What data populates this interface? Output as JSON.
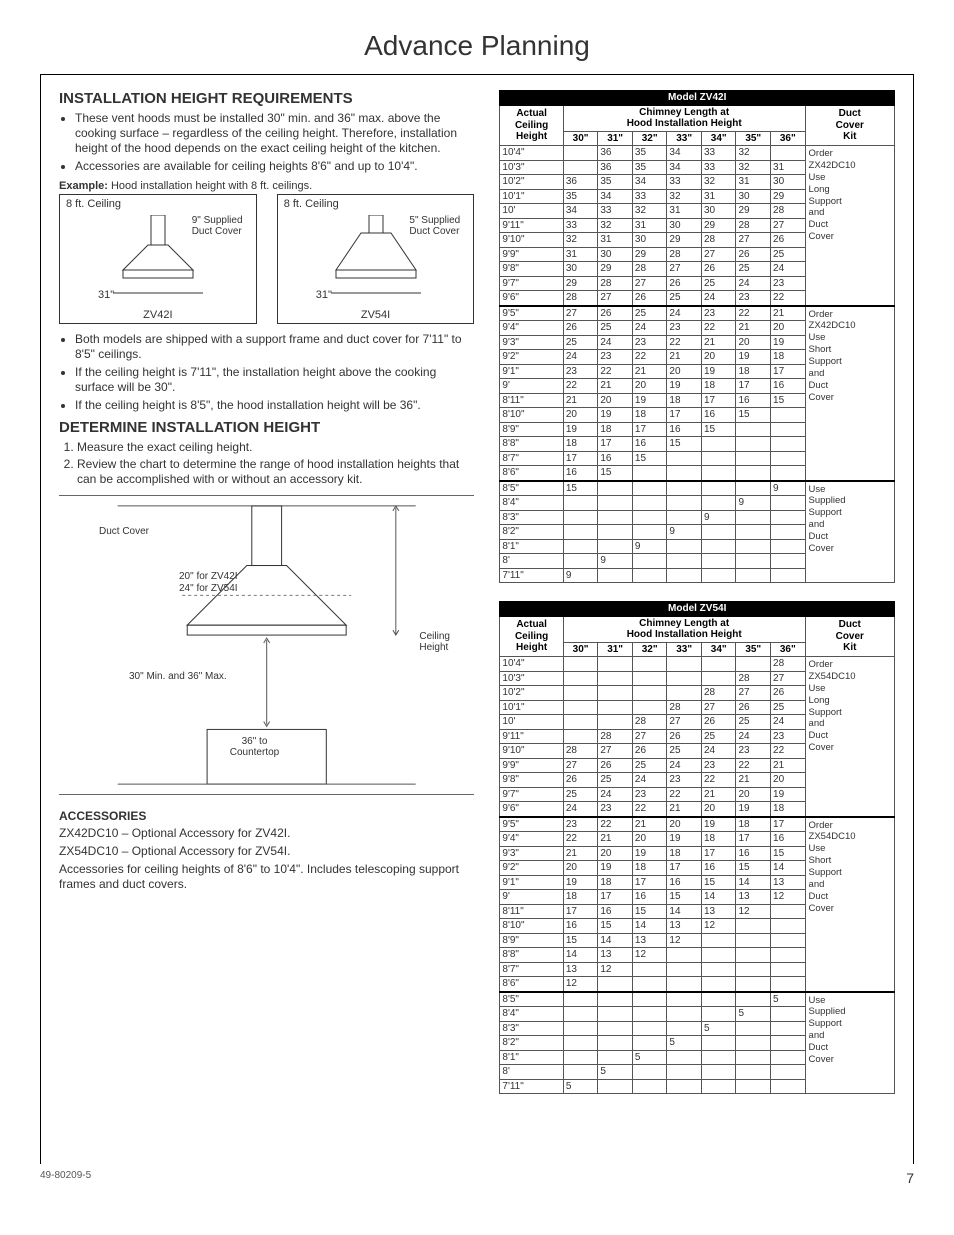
{
  "page_title": "Advance Planning",
  "footer_code": "49-80209-5",
  "page_number": "7",
  "left": {
    "h_install_req": "INSTALLATION HEIGHT REQUIREMENTS",
    "req_bullets_a": [
      "These vent hoods must be installed 30\" min. and 36\" max. above the cooking surface – regardless of the ceiling height. Therefore, installation height of the hood depends on the exact ceiling height of the kitchen.",
      "Accessories are available for ceiling heights 8'6\" and up to 10'4\"."
    ],
    "example_label_b": "Example:",
    "example_label_t": " Hood installation height with 8 ft. ceilings.",
    "ceiling_a": {
      "top": "8 ft. Ceiling",
      "duct": "9\" Supplied Duct Cover",
      "dim": "31\"",
      "model": "ZV42I"
    },
    "ceiling_b": {
      "top": "8 ft. Ceiling",
      "duct": "5\" Supplied Duct Cover",
      "dim": "31\"",
      "model": "ZV54I"
    },
    "req_bullets_b": [
      "Both models are shipped with a support frame and duct cover for 7'11\" to 8'5\" ceilings.",
      "If the ceiling height is 7'11\", the installation height above the cooking surface will be 30\".",
      "If the ceiling height is 8'5\", the hood installation height will be 36\"."
    ],
    "h_determine": "DETERMINE INSTALLATION HEIGHT",
    "steps": [
      "Measure the exact ceiling height.",
      "Review the chart to determine the range of hood installation heights that can be accomplished with or without an accessory kit."
    ],
    "diag": {
      "duct_cover": "Duct Cover",
      "spec_a": "20\" for ZV42I",
      "spec_b": "24\" for ZV54I",
      "minmax": "30\" Min. and 36\" Max.",
      "ceiling_h": "Ceiling Height",
      "countertop": "36\" to Countertop"
    },
    "h_acc": "ACCESSORIES",
    "acc_p1": "ZX42DC10 – Optional Accessory for ZV42I.",
    "acc_p2": "ZX54DC10 – Optional Accessory for ZV54I.",
    "acc_p3": "Accessories for ceiling heights of 8'6\" to 10'4\". Includes telescoping support frames and duct covers."
  },
  "tables": {
    "head_actual": "Actual Ceiling Height",
    "head_chimney": "Chimney Length at",
    "head_hood": "Hood Installation Height",
    "head_duct": "Duct Cover Kit",
    "col_widths": [
      "30\"",
      "31\"",
      "32\"",
      "33\"",
      "34\"",
      "35\"",
      "36\""
    ],
    "kit_texts": [
      "Order ZX42DC10 Use Long Support and Duct Cover",
      "Order ZX42DC10 Use Short Support and Duct Cover",
      "Use Supplied Support and Duct Cover"
    ],
    "kit_texts_54": [
      "Order ZX54DC10 Use Long Support and Duct Cover",
      "Order ZX54DC10 Use Short Support and Duct Cover",
      "Use Supplied Support and Duct Cover"
    ],
    "zv42i": {
      "title": "Model ZV42I",
      "groups": [
        {
          "kit_idx": 0,
          "rows": [
            [
              "10'4\"",
              "",
              "36",
              "35",
              "34",
              "33",
              "32",
              ""
            ],
            [
              "10'3\"",
              "",
              "36",
              "35",
              "34",
              "33",
              "32",
              "31"
            ],
            [
              "10'2\"",
              "36",
              "35",
              "34",
              "33",
              "32",
              "31",
              "30"
            ],
            [
              "10'1\"",
              "35",
              "34",
              "33",
              "32",
              "31",
              "30",
              "29"
            ],
            [
              "10'",
              "34",
              "33",
              "32",
              "31",
              "30",
              "29",
              "28"
            ],
            [
              "9'11\"",
              "33",
              "32",
              "31",
              "30",
              "29",
              "28",
              "27"
            ],
            [
              "9'10\"",
              "32",
              "31",
              "30",
              "29",
              "28",
              "27",
              "26"
            ],
            [
              "9'9\"",
              "31",
              "30",
              "29",
              "28",
              "27",
              "26",
              "25"
            ],
            [
              "9'8\"",
              "30",
              "29",
              "28",
              "27",
              "26",
              "25",
              "24"
            ],
            [
              "9'7\"",
              "29",
              "28",
              "27",
              "26",
              "25",
              "24",
              "23"
            ],
            [
              "9'6\"",
              "28",
              "27",
              "26",
              "25",
              "24",
              "23",
              "22"
            ]
          ]
        },
        {
          "kit_idx": 1,
          "rows": [
            [
              "9'5\"",
              "27",
              "26",
              "25",
              "24",
              "23",
              "22",
              "21"
            ],
            [
              "9'4\"",
              "26",
              "25",
              "24",
              "23",
              "22",
              "21",
              "20"
            ],
            [
              "9'3\"",
              "25",
              "24",
              "23",
              "22",
              "21",
              "20",
              "19"
            ],
            [
              "9'2\"",
              "24",
              "23",
              "22",
              "21",
              "20",
              "19",
              "18"
            ],
            [
              "9'1\"",
              "23",
              "22",
              "21",
              "20",
              "19",
              "18",
              "17"
            ],
            [
              "9'",
              "22",
              "21",
              "20",
              "19",
              "18",
              "17",
              "16"
            ],
            [
              "8'11\"",
              "21",
              "20",
              "19",
              "18",
              "17",
              "16",
              "15"
            ],
            [
              "8'10\"",
              "20",
              "19",
              "18",
              "17",
              "16",
              "15",
              ""
            ],
            [
              "8'9\"",
              "19",
              "18",
              "17",
              "16",
              "15",
              "",
              ""
            ],
            [
              "8'8\"",
              "18",
              "17",
              "16",
              "15",
              "",
              "",
              ""
            ],
            [
              "8'7\"",
              "17",
              "16",
              "15",
              "",
              "",
              "",
              ""
            ],
            [
              "8'6\"",
              "16",
              "15",
              "",
              "",
              "",
              "",
              ""
            ]
          ]
        },
        {
          "kit_idx": 2,
          "rows": [
            [
              "8'5\"",
              "15",
              "",
              "",
              "",
              "",
              "",
              "9"
            ],
            [
              "8'4\"",
              "",
              "",
              "",
              "",
              "",
              "9",
              ""
            ],
            [
              "8'3\"",
              "",
              "",
              "",
              "",
              "9",
              "",
              ""
            ],
            [
              "8'2\"",
              "",
              "",
              "",
              "9",
              "",
              "",
              ""
            ],
            [
              "8'1\"",
              "",
              "",
              "9",
              "",
              "",
              "",
              ""
            ],
            [
              "8'",
              "",
              "9",
              "",
              "",
              "",
              "",
              ""
            ],
            [
              "7'11\"",
              "9",
              "",
              "",
              "",
              "",
              "",
              ""
            ]
          ]
        }
      ]
    },
    "zv54i": {
      "title": "Model ZV54I",
      "groups": [
        {
          "kit_idx": 0,
          "rows": [
            [
              "10'4\"",
              "",
              "",
              "",
              "",
              "",
              "",
              "28"
            ],
            [
              "10'3\"",
              "",
              "",
              "",
              "",
              "",
              "28",
              "27"
            ],
            [
              "10'2\"",
              "",
              "",
              "",
              "",
              "28",
              "27",
              "26"
            ],
            [
              "10'1\"",
              "",
              "",
              "",
              "28",
              "27",
              "26",
              "25"
            ],
            [
              "10'",
              "",
              "",
              "28",
              "27",
              "26",
              "25",
              "24"
            ],
            [
              "9'11\"",
              "",
              "28",
              "27",
              "26",
              "25",
              "24",
              "23"
            ],
            [
              "9'10\"",
              "28",
              "27",
              "26",
              "25",
              "24",
              "23",
              "22"
            ],
            [
              "9'9\"",
              "27",
              "26",
              "25",
              "24",
              "23",
              "22",
              "21"
            ],
            [
              "9'8\"",
              "26",
              "25",
              "24",
              "23",
              "22",
              "21",
              "20"
            ],
            [
              "9'7\"",
              "25",
              "24",
              "23",
              "22",
              "21",
              "20",
              "19"
            ],
            [
              "9'6\"",
              "24",
              "23",
              "22",
              "21",
              "20",
              "19",
              "18"
            ]
          ]
        },
        {
          "kit_idx": 1,
          "rows": [
            [
              "9'5\"",
              "23",
              "22",
              "21",
              "20",
              "19",
              "18",
              "17"
            ],
            [
              "9'4\"",
              "22",
              "21",
              "20",
              "19",
              "18",
              "17",
              "16"
            ],
            [
              "9'3\"",
              "21",
              "20",
              "19",
              "18",
              "17",
              "16",
              "15"
            ],
            [
              "9'2\"",
              "20",
              "19",
              "18",
              "17",
              "16",
              "15",
              "14"
            ],
            [
              "9'1\"",
              "19",
              "18",
              "17",
              "16",
              "15",
              "14",
              "13"
            ],
            [
              "9'",
              "18",
              "17",
              "16",
              "15",
              "14",
              "13",
              "12"
            ],
            [
              "8'11\"",
              "17",
              "16",
              "15",
              "14",
              "13",
              "12",
              ""
            ],
            [
              "8'10\"",
              "16",
              "15",
              "14",
              "13",
              "12",
              "",
              ""
            ],
            [
              "8'9\"",
              "15",
              "14",
              "13",
              "12",
              "",
              "",
              ""
            ],
            [
              "8'8\"",
              "14",
              "13",
              "12",
              "",
              "",
              "",
              ""
            ],
            [
              "8'7\"",
              "13",
              "12",
              "",
              "",
              "",
              "",
              ""
            ],
            [
              "8'6\"",
              "12",
              "",
              "",
              "",
              "",
              "",
              ""
            ]
          ]
        },
        {
          "kit_idx": 2,
          "rows": [
            [
              "8'5\"",
              "",
              "",
              "",
              "",
              "",
              "",
              "5"
            ],
            [
              "8'4\"",
              "",
              "",
              "",
              "",
              "",
              "5",
              ""
            ],
            [
              "8'3\"",
              "",
              "",
              "",
              "",
              "5",
              "",
              ""
            ],
            [
              "8'2\"",
              "",
              "",
              "",
              "5",
              "",
              "",
              ""
            ],
            [
              "8'1\"",
              "",
              "",
              "5",
              "",
              "",
              "",
              ""
            ],
            [
              "8'",
              "",
              "5",
              "",
              "",
              "",
              "",
              ""
            ],
            [
              "7'11\"",
              "5",
              "",
              "",
              "",
              "",
              "",
              ""
            ]
          ]
        }
      ]
    }
  }
}
